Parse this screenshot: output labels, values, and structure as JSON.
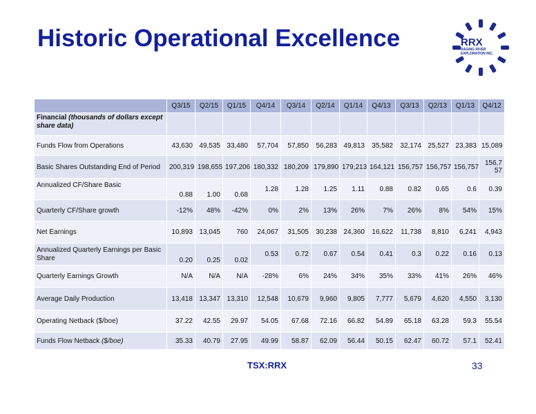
{
  "title": "Historic Operational Excellence",
  "logo": {
    "name": "RRX",
    "line1": "RAGING RIVER",
    "line2": "EXPLORATION INC.",
    "color": "#1b2a8c"
  },
  "colors": {
    "title": "#12219a",
    "header_bg": "#aab5d9",
    "row_dark": "#dfe3f1",
    "row_light": "#eff1f8"
  },
  "table": {
    "columns": [
      "Q3/15",
      "Q2/15",
      "Q1/15",
      "Q4/14",
      "Q3/14",
      "Q2/14",
      "Q1/14",
      "Q4/13",
      "Q3/13",
      "Q2/13",
      "Q1/13",
      "Q4/12"
    ],
    "section_label": "Financial",
    "section_label_italic": "(thousands of dollars except share data)",
    "rows": [
      {
        "label": "Funds Flow from Operations",
        "values": [
          "43,630",
          "49,535",
          "33,480",
          "57,704",
          "57,850",
          "56,283",
          "49,813",
          "35,582",
          "32,174",
          "25,527",
          "23,383",
          "15,089"
        ]
      },
      {
        "label": "Basic Shares Outstanding End of Period",
        "values": [
          "200,319",
          "198,655",
          "197,206",
          "180,332",
          "180,209",
          "179,890",
          "179,213",
          "164,121",
          "156,757",
          "156,757",
          "156,757",
          "156,757"
        ]
      },
      {
        "label": "Annualized CF/Share Basic",
        "values": [
          "0.88",
          "1.00",
          "0.68",
          "1.28",
          "1.28",
          "1.25",
          "1.11",
          "0.88",
          "0.82",
          "0.65",
          "0.6",
          "0.39"
        ]
      },
      {
        "label": "Quarterly CF/Share growth",
        "values": [
          "-12%",
          "48%",
          "-42%",
          "0%",
          "2%",
          "13%",
          "26%",
          "7%",
          "26%",
          "8%",
          "54%",
          "15%"
        ]
      },
      {
        "label": "Net Earnings",
        "values": [
          "10,893",
          "13,045",
          "760",
          "24,067",
          "31,505",
          "30,238",
          "24,360",
          "16,622",
          "11,738",
          "8,810",
          "6,241",
          "4,943"
        ]
      },
      {
        "label": "Annualized Quarterly Earnings per Basic Share",
        "values": [
          "0.20",
          "0.25",
          "0.02",
          "0.53",
          "0.72",
          "0.67",
          "0.54",
          "0.41",
          "0.3",
          "0.22",
          "0.16",
          "0.13"
        ]
      },
      {
        "label": "Quarterly Earnings Growth",
        "values": [
          "N/A",
          "N/A",
          "N/A",
          "-28%",
          "6%",
          "24%",
          "34%",
          "35%",
          "33%",
          "41%",
          "26%",
          "46%"
        ]
      },
      {
        "label": "Average Daily Production",
        "values": [
          "13,418",
          "13,347",
          "13,310",
          "12,548",
          "10,679",
          "9,960",
          "9,805",
          "7,777",
          "5,679",
          "4,620",
          "4,550",
          "3,130"
        ]
      },
      {
        "label": "Operating Netback ($/boe)",
        "values": [
          "37.22",
          "42.55",
          "29.97",
          "54.05",
          "67.68",
          "72.16",
          "66.82",
          "54.89",
          "65.18",
          "63.28",
          "59.3",
          "55.54"
        ]
      },
      {
        "label": "Funds Flow Netback",
        "label_italic": "($/boe)",
        "values": [
          "35.33",
          "40.79",
          "27.95",
          "49.99",
          "58.87",
          "62.09",
          "56.44",
          "50.15",
          "62.47",
          "60.72",
          "57.1",
          "52.41"
        ]
      }
    ]
  },
  "footer": {
    "ticker": "TSX:RRX",
    "page": "33"
  }
}
